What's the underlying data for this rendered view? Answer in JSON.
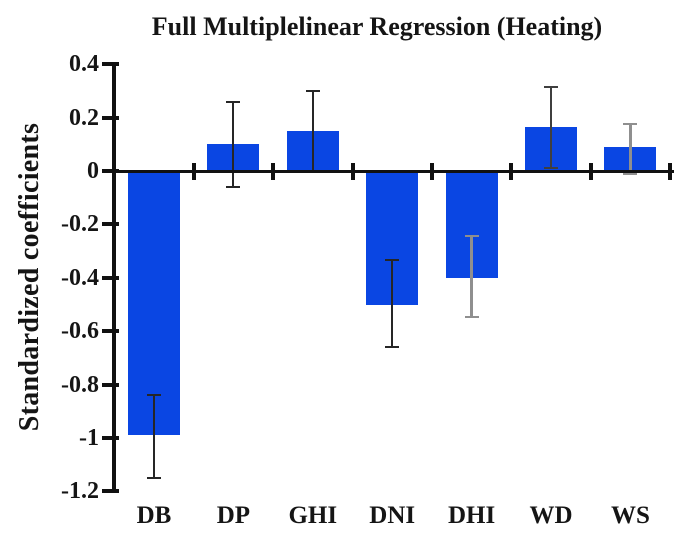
{
  "chart_data": {
    "type": "bar",
    "title": "Full Multiplelinear Regression (Heating)",
    "xlabel": "",
    "ylabel": "Standardized coefficients",
    "categories": [
      "DB",
      "DP",
      "GHI",
      "DNI",
      "DHI",
      "WD",
      "WS"
    ],
    "values": [
      -0.99,
      0.1,
      0.15,
      -0.5,
      -0.4,
      0.165,
      0.09
    ],
    "err_low": [
      -1.15,
      -0.06,
      0.0,
      -0.66,
      -0.545,
      0.01,
      -0.01
    ],
    "err_high": [
      -0.84,
      0.26,
      0.3,
      -0.335,
      -0.245,
      0.315,
      0.175
    ],
    "ylim": [
      -1.2,
      0.4
    ],
    "ytick_step": 0.2,
    "ytick_labels": [
      "0.4",
      "0.2",
      "0",
      "-0.2",
      "-0.4",
      "-0.6",
      "-0.8",
      "-1",
      "-1.2"
    ],
    "grid": false,
    "legend": null,
    "bar_color": "#0a46e3",
    "axis_color": "#111111",
    "error_colors": [
      "#262626",
      "#262626",
      "#262626",
      "#262626",
      "#8f8f8f",
      "#3f3f3f",
      "#8f8f8f"
    ],
    "error_widths": [
      2,
      2,
      2,
      2,
      3,
      2,
      3
    ]
  }
}
